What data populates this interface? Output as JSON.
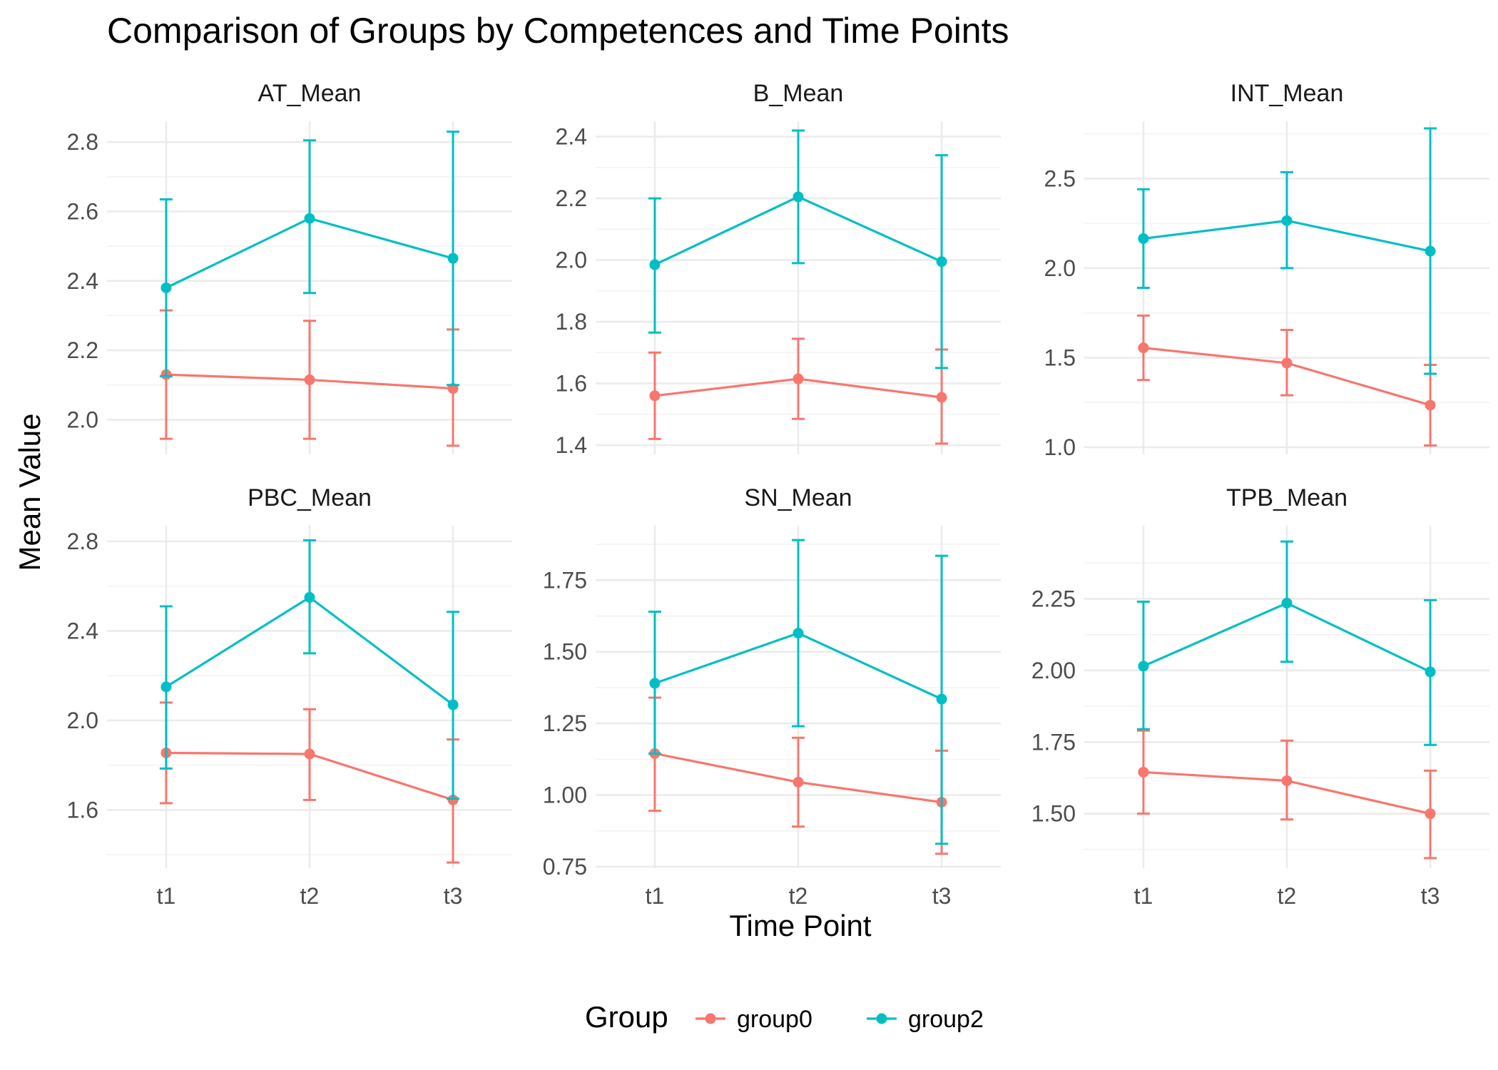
{
  "figure": {
    "title": "Comparison of Groups by Competences and Time Points",
    "xlabel": "Time Point",
    "ylabel": "Mean Value",
    "legend": {
      "title": "Group",
      "position": "bottom"
    }
  },
  "colors": {
    "group0": "#F8766D",
    "group2": "#00BFC4",
    "grid_major": "#EBEBEB",
    "grid_minor": "#F3F3F3"
  },
  "chart_data": [
    {
      "type": "line",
      "title": "AT_Mean",
      "categories": [
        "t1",
        "t2",
        "t3"
      ],
      "ylim": [
        1.9,
        2.86
      ],
      "yticks": [
        2.0,
        2.2,
        2.4,
        2.6,
        2.8
      ],
      "ytick_labels": [
        "2.0",
        "2.2",
        "2.4",
        "2.6",
        "2.8"
      ],
      "series": [
        {
          "name": "group0",
          "values": [
            2.13,
            2.115,
            2.09
          ],
          "lower": [
            1.945,
            1.945,
            1.925
          ],
          "upper": [
            2.315,
            2.285,
            2.26
          ]
        },
        {
          "name": "group2",
          "values": [
            2.38,
            2.58,
            2.465
          ],
          "lower": [
            2.125,
            2.365,
            2.1
          ],
          "upper": [
            2.635,
            2.805,
            2.83
          ]
        }
      ]
    },
    {
      "type": "line",
      "title": "B_Mean",
      "categories": [
        "t1",
        "t2",
        "t3"
      ],
      "ylim": [
        1.37,
        2.45
      ],
      "yticks": [
        1.4,
        1.6,
        1.8,
        2.0,
        2.2,
        2.4
      ],
      "ytick_labels": [
        "1.4",
        "1.6",
        "1.8",
        "2.0",
        "2.2",
        "2.4"
      ],
      "series": [
        {
          "name": "group0",
          "values": [
            1.56,
            1.615,
            1.555
          ],
          "lower": [
            1.42,
            1.485,
            1.405
          ],
          "upper": [
            1.7,
            1.745,
            1.71
          ]
        },
        {
          "name": "group2",
          "values": [
            1.985,
            2.205,
            1.995
          ],
          "lower": [
            1.765,
            1.99,
            1.65
          ],
          "upper": [
            2.2,
            2.42,
            2.34
          ]
        }
      ]
    },
    {
      "type": "line",
      "title": "INT_Mean",
      "categories": [
        "t1",
        "t2",
        "t3"
      ],
      "ylim": [
        0.96,
        2.82
      ],
      "yticks": [
        1.0,
        1.5,
        2.0,
        2.5
      ],
      "ytick_labels": [
        "1.0",
        "1.5",
        "2.0",
        "2.5"
      ],
      "series": [
        {
          "name": "group0",
          "values": [
            1.555,
            1.47,
            1.235
          ],
          "lower": [
            1.375,
            1.29,
            1.01
          ],
          "upper": [
            1.735,
            1.655,
            1.46
          ]
        },
        {
          "name": "group2",
          "values": [
            2.165,
            2.265,
            2.095
          ],
          "lower": [
            1.89,
            2.0,
            1.41
          ],
          "upper": [
            2.44,
            2.535,
            2.78
          ]
        }
      ]
    },
    {
      "type": "line",
      "title": "PBC_Mean",
      "categories": [
        "t1",
        "t2",
        "t3"
      ],
      "ylim": [
        1.34,
        2.87
      ],
      "yticks": [
        1.6,
        2.0,
        2.4,
        2.8
      ],
      "ytick_labels": [
        "1.6",
        "2.0",
        "2.4",
        "2.8"
      ],
      "series": [
        {
          "name": "group0",
          "values": [
            1.855,
            1.85,
            1.645
          ],
          "lower": [
            1.63,
            1.645,
            1.365
          ],
          "upper": [
            2.08,
            2.05,
            1.915
          ]
        },
        {
          "name": "group2",
          "values": [
            2.15,
            2.55,
            2.07
          ],
          "lower": [
            1.785,
            2.3,
            1.65
          ],
          "upper": [
            2.51,
            2.805,
            2.485
          ]
        }
      ]
    },
    {
      "type": "line",
      "title": "SN_Mean",
      "categories": [
        "t1",
        "t2",
        "t3"
      ],
      "ylim": [
        0.745,
        1.94
      ],
      "yticks": [
        0.75,
        1.0,
        1.25,
        1.5,
        1.75
      ],
      "ytick_labels": [
        "0.75",
        "1.00",
        "1.25",
        "1.50",
        "1.75"
      ],
      "series": [
        {
          "name": "group0",
          "values": [
            1.145,
            1.045,
            0.975
          ],
          "lower": [
            0.945,
            0.89,
            0.795
          ],
          "upper": [
            1.34,
            1.2,
            1.155
          ]
        },
        {
          "name": "group2",
          "values": [
            1.39,
            1.565,
            1.335
          ],
          "lower": [
            1.145,
            1.24,
            0.83
          ],
          "upper": [
            1.64,
            1.89,
            1.835
          ]
        }
      ]
    },
    {
      "type": "line",
      "title": "TPB_Mean",
      "categories": [
        "t1",
        "t2",
        "t3"
      ],
      "ylim": [
        1.31,
        2.505
      ],
      "yticks": [
        1.5,
        1.75,
        2.0,
        2.25
      ],
      "ytick_labels": [
        "1.50",
        "1.75",
        "2.00",
        "2.25"
      ],
      "series": [
        {
          "name": "group0",
          "values": [
            1.645,
            1.615,
            1.5
          ],
          "lower": [
            1.5,
            1.48,
            1.345
          ],
          "upper": [
            1.79,
            1.755,
            1.65
          ]
        },
        {
          "name": "group2",
          "values": [
            2.015,
            2.235,
            1.995
          ],
          "lower": [
            1.795,
            2.03,
            1.74
          ],
          "upper": [
            2.24,
            2.45,
            2.245
          ]
        }
      ]
    }
  ]
}
